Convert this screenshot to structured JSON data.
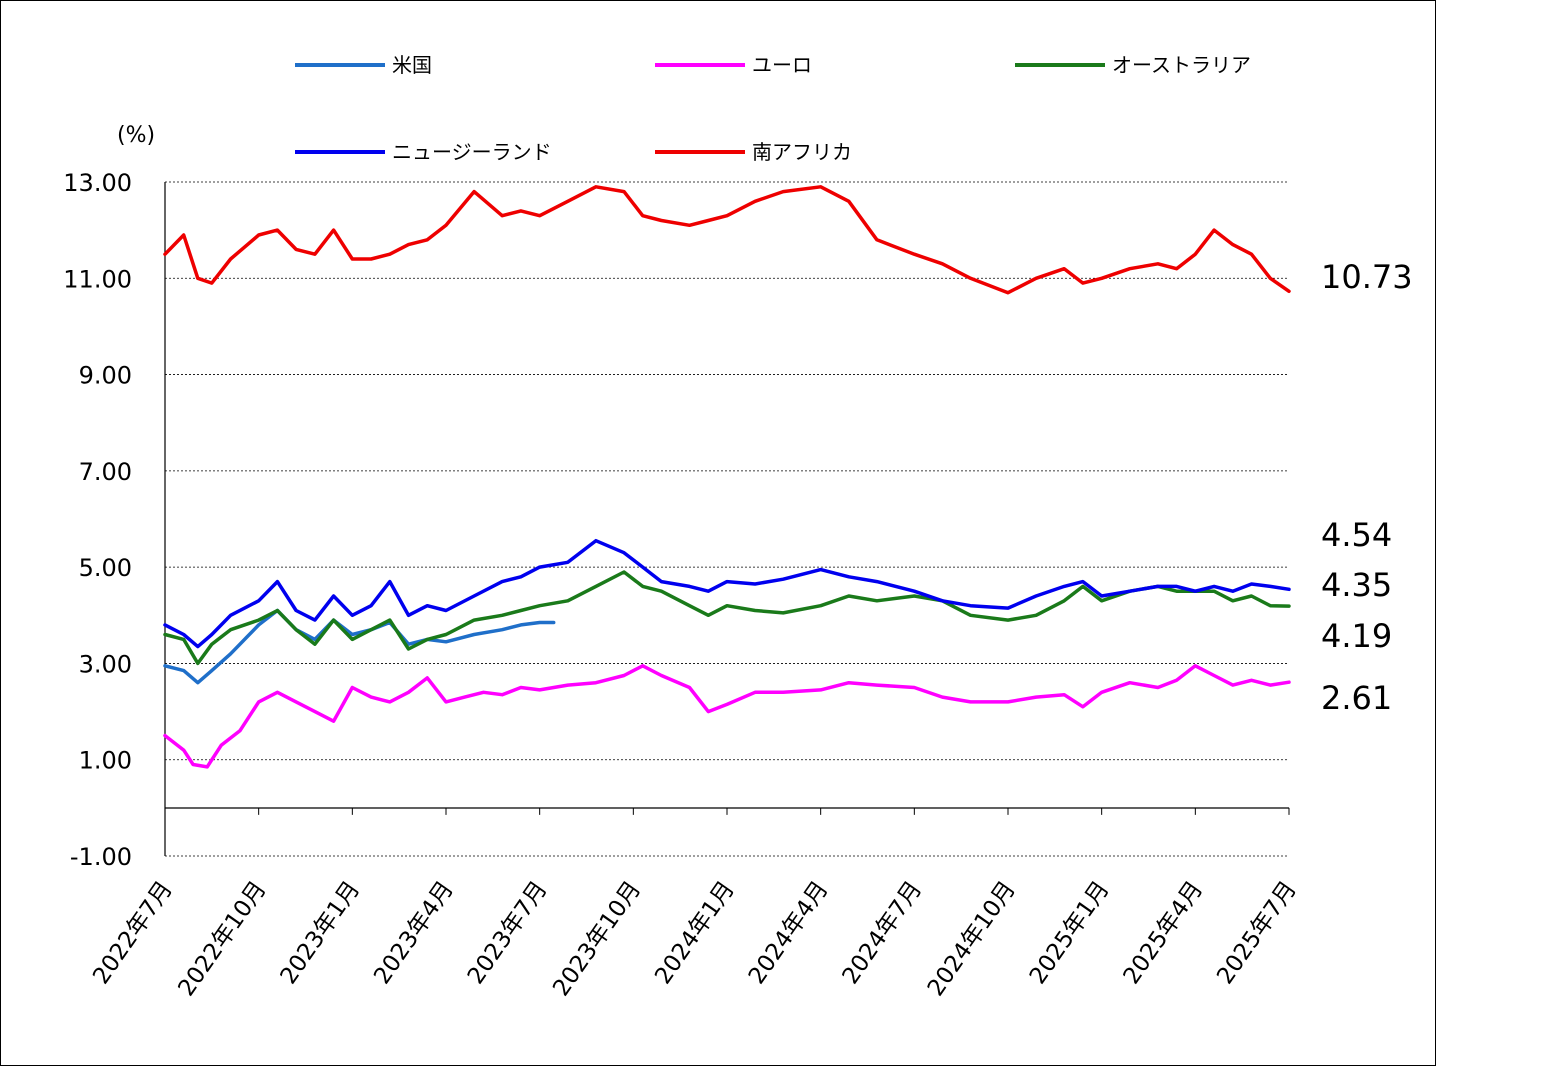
{
  "chart_data": {
    "type": "line",
    "unit_label": "(%)",
    "ylim": [
      -1.0,
      13.0
    ],
    "yticks": [
      "13.00",
      "11.00",
      "9.00",
      "7.00",
      "5.00",
      "3.00",
      "1.00",
      "-1.00"
    ],
    "ytick_values": [
      13,
      11,
      9,
      7,
      5,
      3,
      1,
      -1
    ],
    "negative_tick_color": "#ff0000",
    "grid": "horizontal dotted",
    "x_categories": [
      "2022年7月",
      "2022年10月",
      "2023年1月",
      "2023年4月",
      "2023年7月",
      "2023年10月",
      "2024年1月",
      "2024年4月",
      "2024年7月",
      "2024年10月",
      "2025年1月",
      "2025年4月",
      "2025年7月"
    ],
    "legend_placement": "top",
    "series": [
      {
        "name": "米国",
        "color": "#1f6fc9",
        "x": [
          0,
          0.2,
          0.35,
          0.5,
          0.7,
          1.0,
          1.2,
          1.4,
          1.6,
          1.8,
          2.0,
          2.2,
          2.4,
          2.6,
          2.8,
          3.0,
          3.3,
          3.6,
          3.8,
          4.0,
          4.15
        ],
        "values": [
          2.95,
          2.85,
          2.6,
          2.85,
          3.2,
          3.8,
          4.1,
          3.7,
          3.5,
          3.9,
          3.6,
          3.7,
          3.85,
          3.4,
          3.5,
          3.45,
          3.6,
          3.7,
          3.8,
          3.85,
          3.85
        ]
      },
      {
        "name": "ユーロ",
        "color": "#ff00ff",
        "x": [
          0,
          0.2,
          0.3,
          0.45,
          0.6,
          0.8,
          1.0,
          1.2,
          1.4,
          1.6,
          1.8,
          2.0,
          2.2,
          2.4,
          2.6,
          2.8,
          3.0,
          3.2,
          3.4,
          3.6,
          3.8,
          4.0,
          4.3,
          4.6,
          4.9,
          5.1,
          5.3,
          5.6,
          5.8,
          6.0,
          6.3,
          6.6,
          7.0,
          7.3,
          7.6,
          8.0,
          8.3,
          8.6,
          9.0,
          9.3,
          9.6,
          9.8,
          10.0,
          10.3,
          10.6,
          10.8,
          11.0,
          11.2,
          11.4,
          11.6,
          11.8,
          12.0
        ],
        "values": [
          1.5,
          1.2,
          0.9,
          0.85,
          1.3,
          1.6,
          2.2,
          2.4,
          2.2,
          2.0,
          1.8,
          2.5,
          2.3,
          2.2,
          2.4,
          2.7,
          2.2,
          2.3,
          2.4,
          2.35,
          2.5,
          2.45,
          2.55,
          2.6,
          2.75,
          2.95,
          2.75,
          2.5,
          2.0,
          2.15,
          2.4,
          2.4,
          2.45,
          2.6,
          2.55,
          2.5,
          2.3,
          2.2,
          2.2,
          2.3,
          2.35,
          2.1,
          2.4,
          2.6,
          2.5,
          2.65,
          2.95,
          2.75,
          2.55,
          2.65,
          2.55,
          2.61
        ]
      },
      {
        "name": "オーストラリア",
        "color": "#1a7a1a",
        "x": [
          0,
          0.2,
          0.35,
          0.5,
          0.7,
          1.0,
          1.2,
          1.4,
          1.6,
          1.8,
          2.0,
          2.2,
          2.4,
          2.6,
          2.8,
          3.0,
          3.3,
          3.6,
          3.8,
          4.0,
          4.3,
          4.6,
          4.9,
          5.1,
          5.3,
          5.6,
          5.8,
          6.0,
          6.3,
          6.6,
          7.0,
          7.3,
          7.6,
          8.0,
          8.3,
          8.6,
          9.0,
          9.3,
          9.6,
          9.8,
          10.0,
          10.3,
          10.6,
          10.8,
          11.0,
          11.2,
          11.4,
          11.6,
          11.8,
          12.0
        ],
        "values": [
          3.6,
          3.5,
          3.0,
          3.4,
          3.7,
          3.9,
          4.1,
          3.7,
          3.4,
          3.9,
          3.5,
          3.7,
          3.9,
          3.3,
          3.5,
          3.6,
          3.9,
          4.0,
          4.1,
          4.2,
          4.3,
          4.6,
          4.9,
          4.6,
          4.5,
          4.2,
          4.0,
          4.2,
          4.1,
          4.05,
          4.2,
          4.4,
          4.3,
          4.4,
          4.3,
          4.0,
          3.9,
          4.0,
          4.3,
          4.6,
          4.3,
          4.5,
          4.6,
          4.5,
          4.5,
          4.5,
          4.3,
          4.4,
          4.2,
          4.19
        ]
      },
      {
        "name": "ニュージーランド",
        "color": "#0000ee",
        "x": [
          0,
          0.2,
          0.35,
          0.5,
          0.7,
          1.0,
          1.2,
          1.4,
          1.6,
          1.8,
          2.0,
          2.2,
          2.4,
          2.6,
          2.8,
          3.0,
          3.3,
          3.6,
          3.8,
          4.0,
          4.3,
          4.6,
          4.9,
          5.1,
          5.3,
          5.6,
          5.8,
          6.0,
          6.3,
          6.6,
          7.0,
          7.3,
          7.6,
          8.0,
          8.3,
          8.6,
          9.0,
          9.3,
          9.6,
          9.8,
          10.0,
          10.3,
          10.6,
          10.8,
          11.0,
          11.2,
          11.4,
          11.6,
          11.8,
          12.0
        ],
        "values": [
          3.8,
          3.6,
          3.35,
          3.6,
          4.0,
          4.3,
          4.7,
          4.1,
          3.9,
          4.4,
          4.0,
          4.2,
          4.7,
          4.0,
          4.2,
          4.1,
          4.4,
          4.7,
          4.8,
          5.0,
          5.1,
          5.55,
          5.3,
          5.0,
          4.7,
          4.6,
          4.5,
          4.7,
          4.65,
          4.75,
          4.95,
          4.8,
          4.7,
          4.5,
          4.3,
          4.2,
          4.15,
          4.4,
          4.6,
          4.7,
          4.4,
          4.5,
          4.6,
          4.6,
          4.5,
          4.6,
          4.5,
          4.65,
          4.6,
          4.54
        ]
      },
      {
        "name": "南アフリカ",
        "color": "#ee0000",
        "x": [
          0,
          0.2,
          0.35,
          0.5,
          0.7,
          1.0,
          1.2,
          1.4,
          1.6,
          1.8,
          2.0,
          2.2,
          2.4,
          2.6,
          2.8,
          3.0,
          3.3,
          3.6,
          3.8,
          4.0,
          4.3,
          4.6,
          4.9,
          5.1,
          5.3,
          5.6,
          5.8,
          6.0,
          6.3,
          6.6,
          7.0,
          7.3,
          7.6,
          8.0,
          8.3,
          8.6,
          9.0,
          9.3,
          9.6,
          9.8,
          10.0,
          10.3,
          10.6,
          10.8,
          11.0,
          11.2,
          11.4,
          11.6,
          11.8,
          12.0
        ],
        "values": [
          11.5,
          11.9,
          11.0,
          10.9,
          11.4,
          11.9,
          12.0,
          11.6,
          11.5,
          12.0,
          11.4,
          11.4,
          11.5,
          11.7,
          11.8,
          12.1,
          12.8,
          12.3,
          12.4,
          12.3,
          12.6,
          12.9,
          12.8,
          12.3,
          12.2,
          12.1,
          12.2,
          12.3,
          12.6,
          12.8,
          12.9,
          12.6,
          11.8,
          11.5,
          11.3,
          11.0,
          10.7,
          11.0,
          11.2,
          10.9,
          11.0,
          11.2,
          11.3,
          11.2,
          11.5,
          12.0,
          11.7,
          11.5,
          11.0,
          10.73
        ]
      }
    ],
    "end_labels": [
      "10.73",
      "4.54",
      "4.35",
      "4.19",
      "2.61"
    ]
  }
}
